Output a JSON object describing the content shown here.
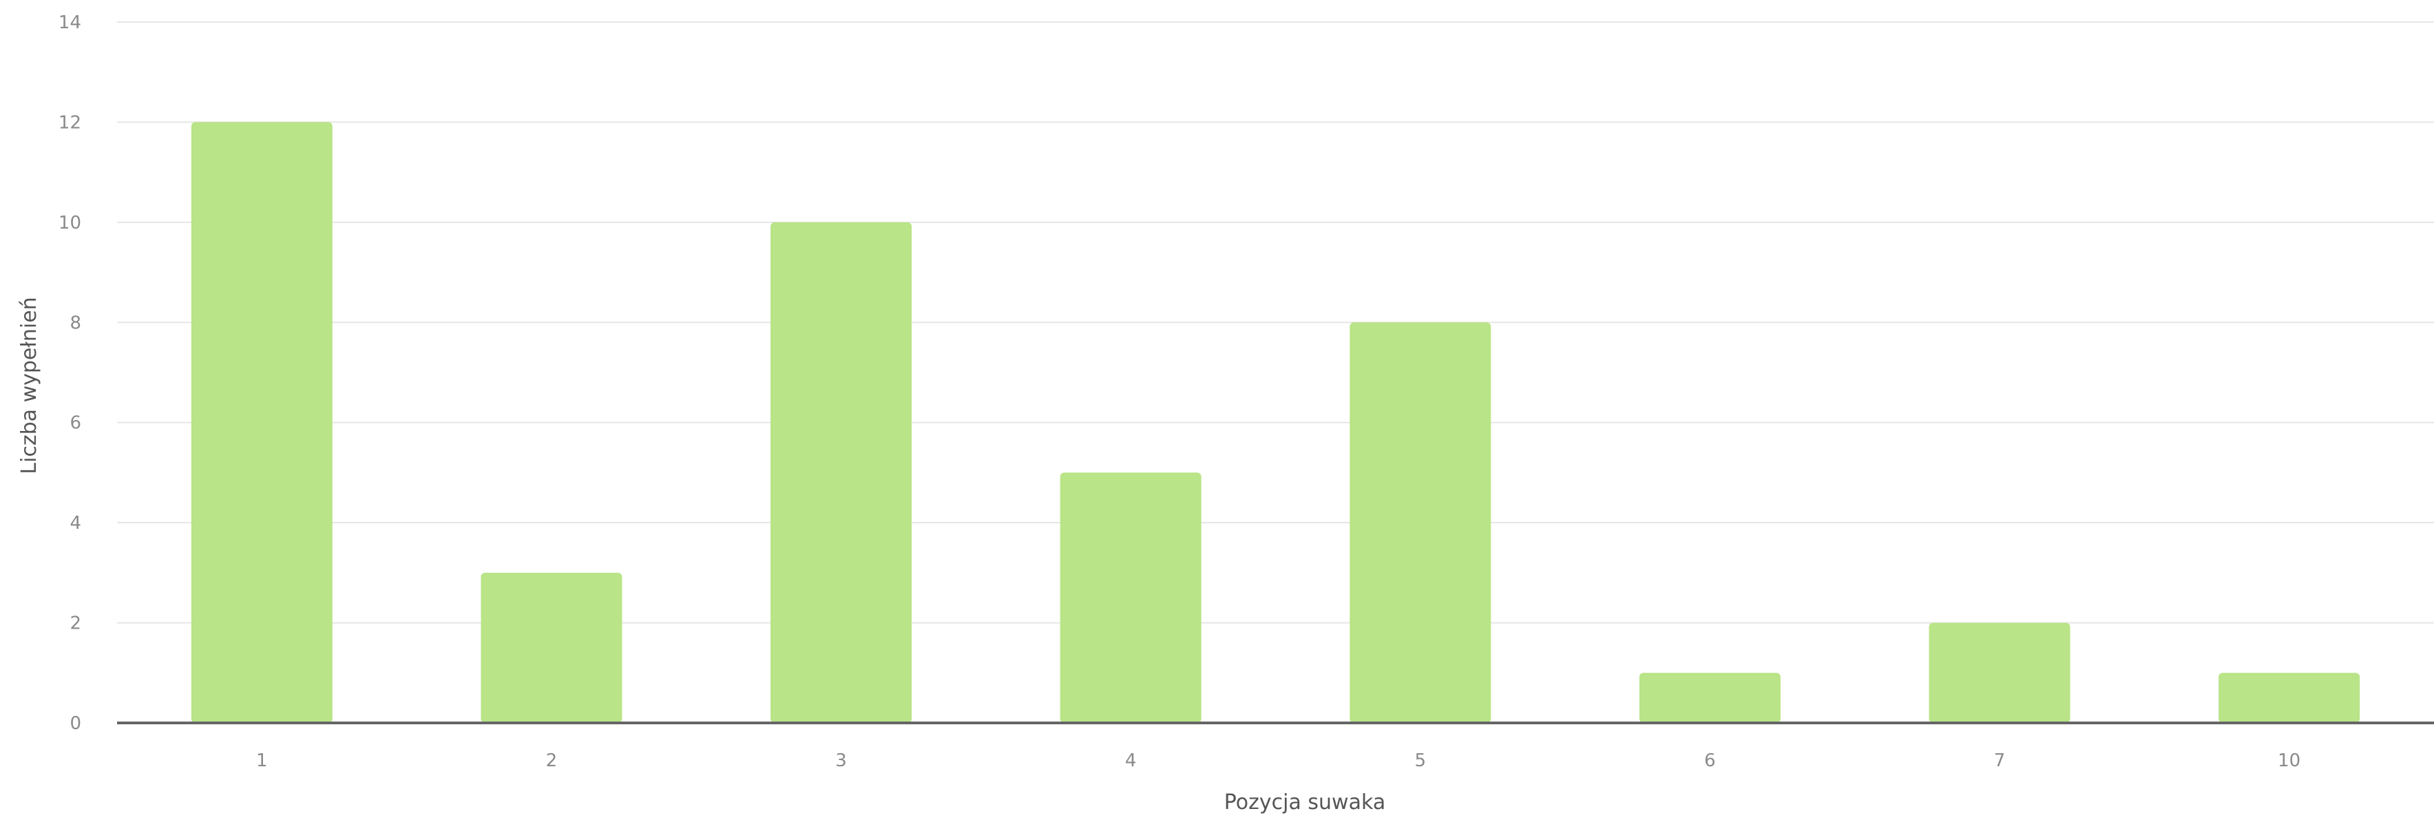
{
  "chart_data": {
    "type": "bar",
    "categories": [
      "1",
      "2",
      "3",
      "4",
      "5",
      "6",
      "7",
      "10"
    ],
    "values": [
      12,
      3,
      10,
      5,
      8,
      1,
      2,
      1
    ],
    "xlabel": "Pozycja suwaka",
    "ylabel": "Liczba wypełnień",
    "ylim": [
      0,
      14
    ],
    "yticks": [
      "0",
      "2",
      "4",
      "6",
      "8",
      "10",
      "12",
      "14"
    ],
    "grid": true,
    "legend": "none",
    "colors": {
      "bar": "#b9e487",
      "grid": "#e6e6e6",
      "baseline": "#666666",
      "tick_text": "#8a8a8a",
      "axis_title": "#555555"
    }
  }
}
